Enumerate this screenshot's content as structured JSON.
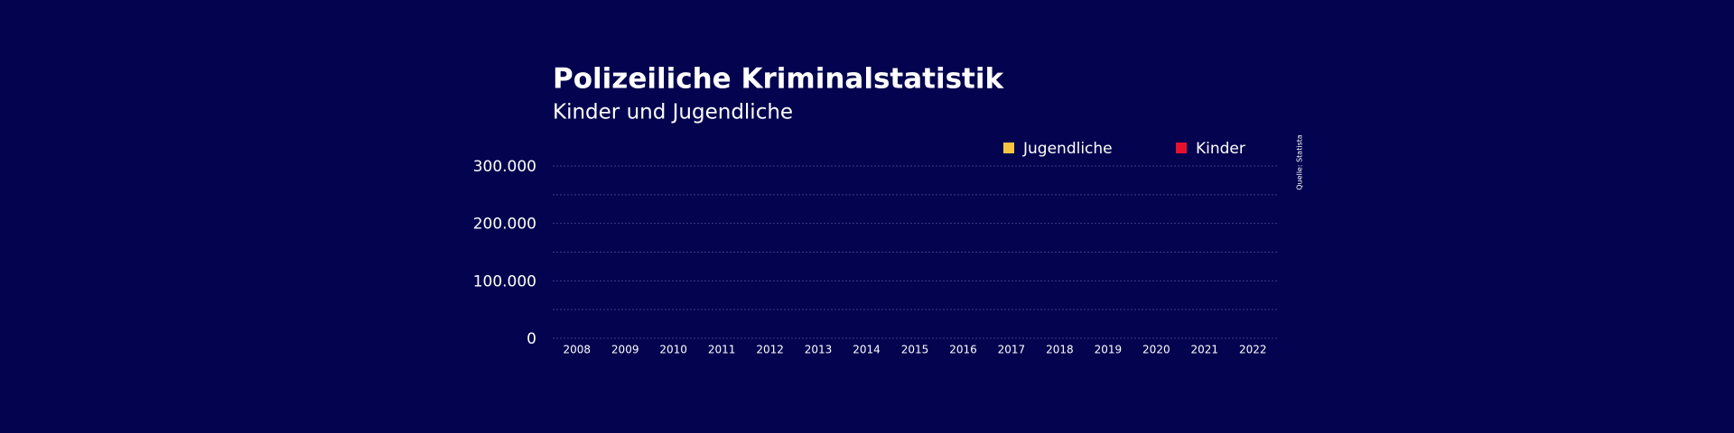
{
  "chart_data": {
    "type": "bar",
    "stacked": true,
    "title": "Polizeiliche Kriminalstatistik",
    "subtitle": "Kinder und Jugendliche",
    "source": "Quelle: Statista",
    "categories": [
      "2008",
      "2009",
      "2010",
      "2011",
      "2012",
      "2013",
      "2014",
      "2015",
      "2016",
      "2017",
      "2018",
      "2019",
      "2020",
      "2021",
      "2022"
    ],
    "series": [
      {
        "name": "Kinder",
        "color": "#e8112d",
        "values": [
          0,
          0,
          0,
          0,
          0,
          0,
          0,
          0,
          0,
          0,
          0,
          0,
          0,
          0,
          0
        ]
      },
      {
        "name": "Jugendliche",
        "color": "#f5c542",
        "values": [
          0,
          0,
          0,
          0,
          0,
          0,
          0,
          0,
          0,
          0,
          0,
          0,
          0,
          0,
          0
        ]
      }
    ],
    "legend_order": [
      1,
      0
    ],
    "ylim": [
      0,
      300000
    ],
    "yticks": [
      0,
      {
        "value": 100000,
        "label": "100.000"
      },
      {
        "value": 200000,
        "label": "200.000"
      },
      {
        "value": 300000,
        "label": "300.000"
      }
    ],
    "y_minor_ticks": [
      50000,
      150000,
      250000
    ],
    "grid": true
  }
}
